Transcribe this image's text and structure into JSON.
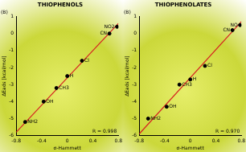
{
  "chart_data": [
    {
      "type": "scatter",
      "title": "THIOPHENOLS",
      "subtitle": "(B)",
      "x_label": "σ-Hammett",
      "y_label": "ΔEads [kcal/mol]",
      "annotations": [
        "R = 0.998"
      ],
      "x": [
        -0.66,
        -0.37,
        -0.17,
        0,
        0.23,
        0.66,
        0.78
      ],
      "values": [
        -5.2,
        -4.0,
        -3.2,
        -2.5,
        -1.6,
        0.0,
        0.4
      ],
      "point_labels": [
        "NH2",
        "OH",
        "CH3",
        "H",
        "Cl",
        "CN",
        "NO2"
      ],
      "color": "#000000",
      "fit_line": {
        "x": [
          -0.8,
          0.8
        ],
        "values": [
          -5.8,
          0.6
        ],
        "color": "#d62020"
      },
      "xlim": [
        -0.8,
        0.8
      ],
      "xticks": [
        -0.8,
        -0.4,
        0,
        0.4,
        0.8
      ],
      "ylim": [
        -6,
        1
      ],
      "yticks": [
        -6,
        -5,
        -4,
        -3,
        -2,
        -1,
        0,
        1
      ],
      "grid": false
    },
    {
      "type": "scatter",
      "title": "THIOPHENOLATES",
      "subtitle": "(B)",
      "x_label": "σ-Hammett",
      "y_label": "ΔEads [kcal/mol]",
      "annotations": [
        "R = 0.970"
      ],
      "x": [
        -0.66,
        -0.37,
        -0.17,
        0,
        0.23,
        0.66,
        0.78
      ],
      "values": [
        -5.0,
        -4.3,
        -3.0,
        -2.7,
        -1.9,
        0.2,
        0.5
      ],
      "point_labels": [
        "NH2",
        "OH",
        "CH3",
        "H",
        "Cl",
        "CN",
        "NO"
      ],
      "color": "#000000",
      "fit_line": {
        "x": [
          -0.8,
          0.8
        ],
        "values": [
          -5.9,
          0.7
        ],
        "color": "#d62020"
      },
      "xlim": [
        -0.8,
        0.8
      ],
      "xticks": [
        -0.8,
        -0.4,
        0,
        0.4,
        0.8
      ],
      "ylim": [
        -6,
        1
      ],
      "yticks": [
        -6,
        -5,
        -4,
        -3,
        -2,
        -1,
        0,
        1
      ],
      "grid": false
    }
  ]
}
